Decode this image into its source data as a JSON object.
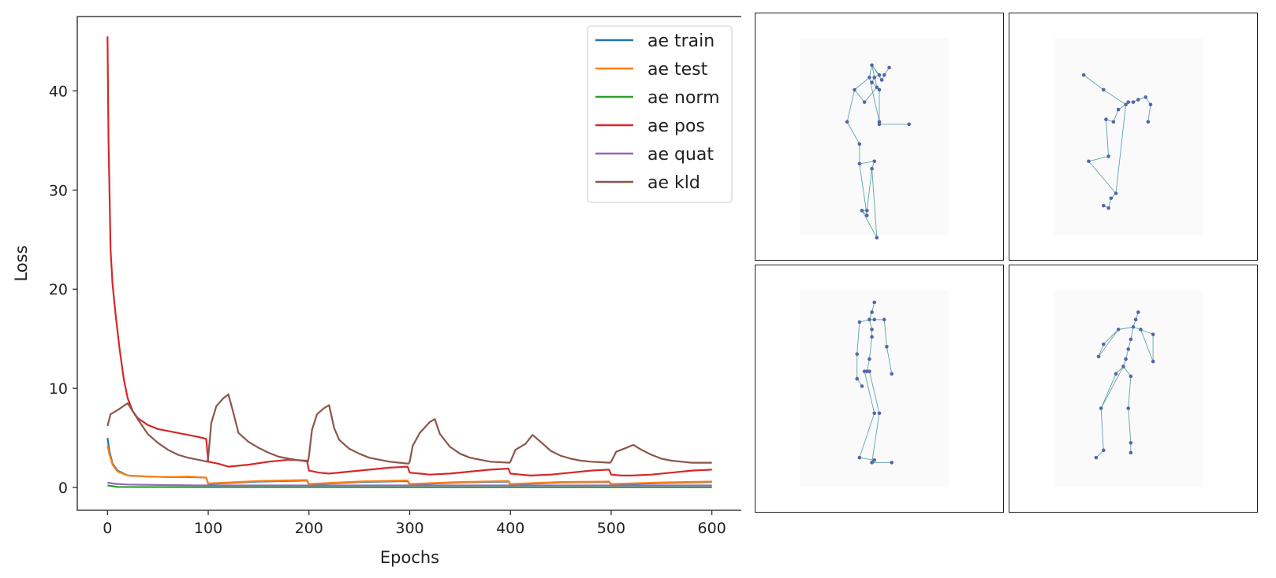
{
  "chart_data": {
    "type": "line",
    "title": "",
    "xlabel": "Epochs",
    "ylabel": "Loss",
    "xlim": [
      -30,
      630
    ],
    "ylim": [
      -2.3,
      47.5
    ],
    "x_ticks": [
      0,
      100,
      200,
      300,
      400,
      500,
      600
    ],
    "y_ticks": [
      0,
      10,
      20,
      30,
      40
    ],
    "grid": false,
    "legend_position": "top-right",
    "series": [
      {
        "name": "ae train",
        "color": "#1f77b4",
        "x": [
          0,
          2,
          5,
          10,
          20,
          40,
          60,
          80,
          98,
          100,
          150,
          198,
          200,
          250,
          298,
          300,
          350,
          398,
          400,
          450,
          498,
          500,
          550,
          600
        ],
        "y": [
          5.0,
          3.6,
          2.4,
          1.7,
          1.2,
          1.1,
          1.05,
          1.05,
          1.0,
          0.35,
          0.6,
          0.7,
          0.3,
          0.55,
          0.65,
          0.3,
          0.5,
          0.6,
          0.3,
          0.5,
          0.55,
          0.3,
          0.45,
          0.55
        ]
      },
      {
        "name": "ae test",
        "color": "#ff7f0e",
        "x": [
          0,
          2,
          5,
          10,
          20,
          40,
          60,
          80,
          98,
          100,
          150,
          198,
          200,
          250,
          298,
          300,
          350,
          398,
          400,
          450,
          498,
          500,
          550,
          600
        ],
        "y": [
          4.2,
          3.3,
          2.3,
          1.6,
          1.2,
          1.1,
          1.05,
          1.1,
          1.0,
          0.4,
          0.65,
          0.75,
          0.35,
          0.6,
          0.7,
          0.35,
          0.55,
          0.65,
          0.35,
          0.55,
          0.6,
          0.35,
          0.5,
          0.6
        ]
      },
      {
        "name": "ae norm",
        "color": "#2ca02c",
        "x": [
          0,
          10,
          100,
          200,
          300,
          400,
          500,
          600
        ],
        "y": [
          0.2,
          0.05,
          0.03,
          0.03,
          0.02,
          0.02,
          0.02,
          0.02
        ]
      },
      {
        "name": "ae pos",
        "color": "#d62728",
        "x": [
          0,
          1,
          3,
          5,
          8,
          12,
          16,
          20,
          25,
          30,
          40,
          50,
          60,
          70,
          80,
          90,
          98,
          100,
          110,
          120,
          140,
          160,
          180,
          198,
          200,
          210,
          220,
          240,
          260,
          280,
          298,
          300,
          310,
          320,
          340,
          360,
          380,
          398,
          400,
          410,
          420,
          440,
          460,
          480,
          498,
          500,
          510,
          520,
          540,
          560,
          580,
          600
        ],
        "y": [
          45.5,
          35.0,
          24.0,
          20.5,
          17.5,
          14.0,
          11.0,
          9.0,
          7.7,
          7.0,
          6.3,
          5.9,
          5.7,
          5.5,
          5.3,
          5.1,
          4.9,
          2.6,
          2.4,
          2.1,
          2.3,
          2.6,
          2.8,
          2.7,
          1.7,
          1.5,
          1.4,
          1.6,
          1.8,
          2.0,
          2.1,
          1.5,
          1.4,
          1.3,
          1.4,
          1.6,
          1.8,
          1.9,
          1.4,
          1.3,
          1.2,
          1.3,
          1.5,
          1.7,
          1.8,
          1.3,
          1.2,
          1.2,
          1.3,
          1.5,
          1.7,
          1.8
        ]
      },
      {
        "name": "ae quat",
        "color": "#9467bd",
        "x": [
          0,
          5,
          10,
          20,
          50,
          100,
          200,
          300,
          400,
          500,
          600
        ],
        "y": [
          0.5,
          0.4,
          0.35,
          0.3,
          0.25,
          0.2,
          0.2,
          0.2,
          0.2,
          0.2,
          0.2
        ]
      },
      {
        "name": "ae kld",
        "color": "#8c564b",
        "x": [
          0,
          3,
          10,
          20,
          30,
          40,
          50,
          60,
          70,
          80,
          90,
          99,
          100,
          103,
          108,
          115,
          120,
          125,
          130,
          140,
          150,
          160,
          170,
          180,
          199,
          200,
          203,
          208,
          215,
          220,
          225,
          230,
          240,
          250,
          260,
          270,
          280,
          299,
          300,
          303,
          310,
          320,
          325,
          330,
          340,
          350,
          360,
          370,
          380,
          399,
          400,
          405,
          415,
          422,
          430,
          440,
          450,
          460,
          470,
          480,
          499,
          500,
          505,
          515,
          522,
          530,
          540,
          550,
          560,
          570,
          580,
          600
        ],
        "y": [
          6.2,
          7.4,
          7.8,
          8.5,
          6.9,
          5.4,
          4.5,
          3.8,
          3.3,
          3.0,
          2.8,
          2.6,
          3.0,
          6.5,
          8.2,
          9.0,
          9.4,
          7.5,
          5.5,
          4.6,
          4.0,
          3.5,
          3.1,
          2.9,
          2.6,
          3.2,
          5.8,
          7.4,
          8.0,
          8.3,
          6.0,
          4.8,
          3.9,
          3.4,
          3.0,
          2.8,
          2.6,
          2.4,
          2.6,
          4.2,
          5.5,
          6.6,
          6.9,
          5.4,
          4.1,
          3.4,
          3.0,
          2.8,
          2.6,
          2.5,
          2.6,
          3.8,
          4.4,
          5.3,
          4.6,
          3.7,
          3.2,
          2.9,
          2.7,
          2.6,
          2.5,
          2.6,
          3.6,
          4.0,
          4.3,
          3.8,
          3.3,
          2.9,
          2.7,
          2.6,
          2.5,
          2.5
        ]
      }
    ]
  },
  "pose_panels": {
    "line_color": "#5fa4a8",
    "joint_color": "#5565a8",
    "panels": [
      {
        "name": "pose-panel-top-left",
        "joints": [
          [
            0.47,
            0.21
          ],
          [
            0.46,
            0.26
          ],
          [
            0.4,
            0.31
          ],
          [
            0.44,
            0.36
          ],
          [
            0.49,
            0.3
          ],
          [
            0.51,
            0.27
          ],
          [
            0.52,
            0.25
          ],
          [
            0.54,
            0.22
          ],
          [
            0.37,
            0.44
          ],
          [
            0.42,
            0.53
          ],
          [
            0.42,
            0.61
          ],
          [
            0.5,
            0.44
          ],
          [
            0.5,
            0.25
          ],
          [
            0.48,
            0.26
          ],
          [
            0.47,
            0.28
          ],
          [
            0.5,
            0.31
          ],
          [
            0.5,
            0.45
          ],
          [
            0.62,
            0.45
          ],
          [
            0.48,
            0.6
          ],
          [
            0.47,
            0.63
          ],
          [
            0.45,
            0.8
          ],
          [
            0.43,
            0.8
          ],
          [
            0.49,
            0.91
          ],
          [
            0.45,
            0.82
          ]
        ],
        "bones": [
          [
            0,
            1
          ],
          [
            1,
            2
          ],
          [
            2,
            3
          ],
          [
            3,
            4
          ],
          [
            0,
            5
          ],
          [
            5,
            6
          ],
          [
            6,
            7
          ],
          [
            0,
            4
          ],
          [
            2,
            8
          ],
          [
            8,
            9
          ],
          [
            9,
            10
          ],
          [
            1,
            11
          ],
          [
            0,
            12
          ],
          [
            12,
            13
          ],
          [
            13,
            14
          ],
          [
            14,
            15
          ],
          [
            15,
            16
          ],
          [
            16,
            17
          ],
          [
            10,
            18
          ],
          [
            18,
            19
          ],
          [
            19,
            20
          ],
          [
            20,
            21
          ],
          [
            19,
            22
          ],
          [
            22,
            21
          ],
          [
            10,
            23
          ],
          [
            23,
            21
          ]
        ]
      },
      {
        "name": "pose-panel-top-right",
        "joints": [
          [
            0.3,
            0.25
          ],
          [
            0.38,
            0.31
          ],
          [
            0.47,
            0.37
          ],
          [
            0.48,
            0.36
          ],
          [
            0.5,
            0.36
          ],
          [
            0.52,
            0.35
          ],
          [
            0.55,
            0.34
          ],
          [
            0.57,
            0.37
          ],
          [
            0.56,
            0.44
          ],
          [
            0.44,
            0.39
          ],
          [
            0.42,
            0.44
          ],
          [
            0.39,
            0.43
          ],
          [
            0.4,
            0.58
          ],
          [
            0.32,
            0.6
          ],
          [
            0.43,
            0.73
          ],
          [
            0.41,
            0.75
          ],
          [
            0.4,
            0.79
          ],
          [
            0.38,
            0.78
          ]
        ],
        "bones": [
          [
            0,
            1
          ],
          [
            1,
            2
          ],
          [
            2,
            3
          ],
          [
            3,
            4
          ],
          [
            4,
            5
          ],
          [
            5,
            6
          ],
          [
            6,
            7
          ],
          [
            7,
            8
          ],
          [
            2,
            9
          ],
          [
            9,
            10
          ],
          [
            10,
            11
          ],
          [
            11,
            12
          ],
          [
            12,
            13
          ],
          [
            13,
            14
          ],
          [
            14,
            15
          ],
          [
            15,
            16
          ],
          [
            16,
            17
          ],
          [
            2,
            14
          ]
        ]
      },
      {
        "name": "pose-panel-bottom-left",
        "joints": [
          [
            0.48,
            0.15
          ],
          [
            0.47,
            0.19
          ],
          [
            0.46,
            0.22
          ],
          [
            0.48,
            0.22
          ],
          [
            0.42,
            0.23
          ],
          [
            0.52,
            0.22
          ],
          [
            0.47,
            0.26
          ],
          [
            0.47,
            0.29
          ],
          [
            0.41,
            0.36
          ],
          [
            0.53,
            0.33
          ],
          [
            0.46,
            0.38
          ],
          [
            0.45,
            0.43
          ],
          [
            0.44,
            0.43
          ],
          [
            0.41,
            0.46
          ],
          [
            0.46,
            0.43
          ],
          [
            0.55,
            0.44
          ],
          [
            0.43,
            0.49
          ],
          [
            0.48,
            0.6
          ],
          [
            0.5,
            0.6
          ],
          [
            0.42,
            0.78
          ],
          [
            0.47,
            0.8
          ],
          [
            0.48,
            0.79
          ],
          [
            0.55,
            0.8
          ]
        ],
        "bones": [
          [
            0,
            1
          ],
          [
            1,
            2
          ],
          [
            2,
            3
          ],
          [
            2,
            4
          ],
          [
            3,
            5
          ],
          [
            2,
            6
          ],
          [
            6,
            7
          ],
          [
            4,
            8
          ],
          [
            8,
            13
          ],
          [
            13,
            16
          ],
          [
            5,
            9
          ],
          [
            9,
            15
          ],
          [
            7,
            10
          ],
          [
            10,
            11
          ],
          [
            11,
            12
          ],
          [
            11,
            14
          ],
          [
            12,
            17
          ],
          [
            14,
            18
          ],
          [
            17,
            19
          ],
          [
            18,
            20
          ],
          [
            19,
            21
          ],
          [
            20,
            22
          ]
        ]
      },
      {
        "name": "pose-panel-bottom-right",
        "joints": [
          [
            0.52,
            0.19
          ],
          [
            0.51,
            0.22
          ],
          [
            0.5,
            0.25
          ],
          [
            0.53,
            0.26
          ],
          [
            0.44,
            0.26
          ],
          [
            0.58,
            0.28
          ],
          [
            0.49,
            0.3
          ],
          [
            0.48,
            0.34
          ],
          [
            0.38,
            0.32
          ],
          [
            0.58,
            0.39
          ],
          [
            0.47,
            0.38
          ],
          [
            0.46,
            0.41
          ],
          [
            0.43,
            0.44
          ],
          [
            0.49,
            0.45
          ],
          [
            0.36,
            0.37
          ],
          [
            0.48,
            0.58
          ],
          [
            0.37,
            0.58
          ],
          [
            0.49,
            0.72
          ],
          [
            0.38,
            0.75
          ],
          [
            0.49,
            0.76
          ],
          [
            0.35,
            0.78
          ]
        ],
        "bones": [
          [
            0,
            1
          ],
          [
            1,
            2
          ],
          [
            2,
            3
          ],
          [
            2,
            4
          ],
          [
            3,
            5
          ],
          [
            2,
            6
          ],
          [
            6,
            7
          ],
          [
            4,
            14
          ],
          [
            14,
            8
          ],
          [
            8,
            4
          ],
          [
            5,
            9
          ],
          [
            3,
            9
          ],
          [
            7,
            10
          ],
          [
            10,
            11
          ],
          [
            11,
            12
          ],
          [
            11,
            13
          ],
          [
            12,
            16
          ],
          [
            13,
            15
          ],
          [
            16,
            18
          ],
          [
            18,
            20
          ],
          [
            15,
            17
          ],
          [
            17,
            19
          ],
          [
            11,
            16
          ]
        ]
      }
    ]
  }
}
